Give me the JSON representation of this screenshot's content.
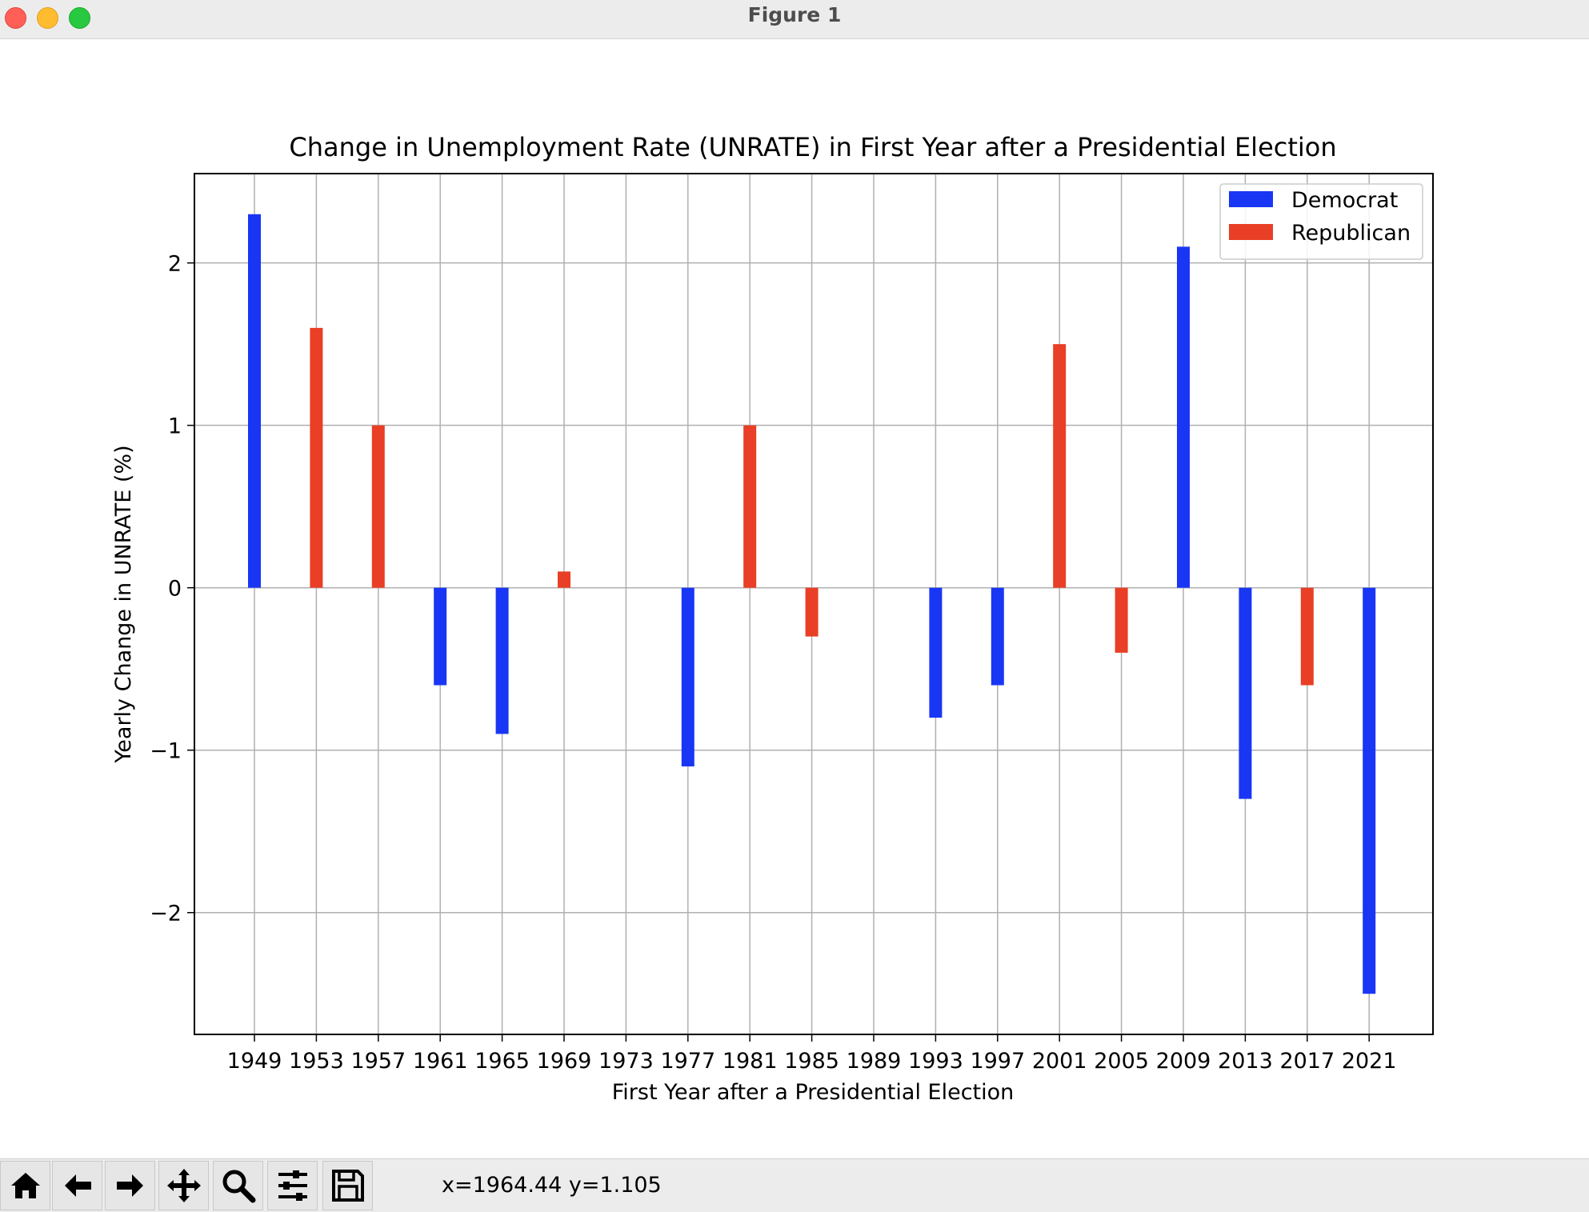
{
  "window": {
    "title": "Figure 1"
  },
  "toolbar": {
    "buttons": [
      {
        "name": "home-icon"
      },
      {
        "name": "back-arrow-icon"
      },
      {
        "name": "forward-arrow-icon"
      },
      {
        "name": "pan-move-icon"
      },
      {
        "name": "zoom-magnifier-icon"
      },
      {
        "name": "configure-subplots-icon"
      },
      {
        "name": "save-icon"
      }
    ],
    "coordinates": "x=1964.44 y=1.105"
  },
  "colors": {
    "democrat": "#1936f5",
    "republican": "#e83f26"
  },
  "chart_data": {
    "type": "bar",
    "title": "Change in Unemployment Rate (UNRATE) in First Year after a Presidential Election",
    "xlabel": "First Year after a Presidential Election",
    "ylabel": "Yearly Change in UNRATE (%)",
    "categories": [
      "1949",
      "1953",
      "1957",
      "1961",
      "1965",
      "1969",
      "1973",
      "1977",
      "1981",
      "1985",
      "1989",
      "1993",
      "1997",
      "2001",
      "2005",
      "2009",
      "2013",
      "2017",
      "2021"
    ],
    "ylim": [
      -2.75,
      2.55
    ],
    "yticks": [
      2,
      1,
      0,
      -1,
      -2
    ],
    "ytick_labels": [
      "2",
      "1",
      "0",
      "−1",
      "−2"
    ],
    "grid": true,
    "legend_position": "top-right",
    "series": [
      {
        "name": "Democrat",
        "values": [
          2.3,
          null,
          null,
          -0.6,
          -0.9,
          null,
          null,
          -1.1,
          null,
          null,
          null,
          -0.8,
          -0.6,
          null,
          null,
          2.1,
          -1.3,
          null,
          -2.5
        ]
      },
      {
        "name": "Republican",
        "values": [
          null,
          1.6,
          1.0,
          null,
          null,
          0.1,
          null,
          null,
          1.0,
          -0.3,
          null,
          null,
          null,
          1.5,
          -0.4,
          null,
          null,
          -0.6,
          null
        ]
      }
    ]
  }
}
